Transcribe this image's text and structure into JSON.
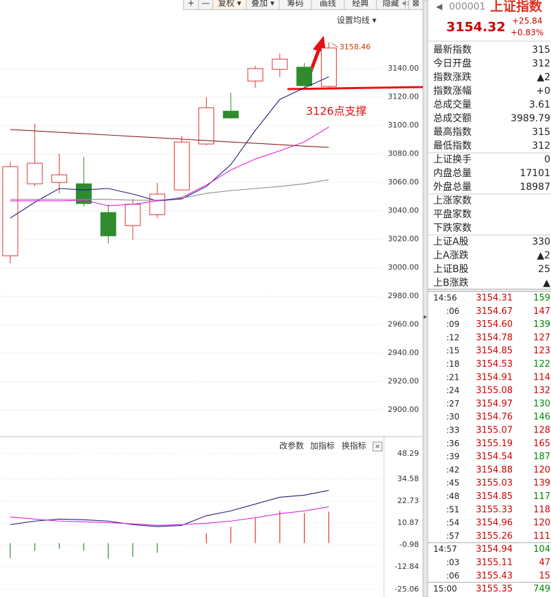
{
  "toolbar": {
    "buttons": [
      "+",
      "—",
      "复权 ▾",
      "叠加 ▾",
      "筹码",
      "画线",
      "经典",
      "隐藏",
      "«»",
      "⊠"
    ],
    "ma_settings": "设置均线 ▾"
  },
  "chart_data": [
    {
      "type": "candlestick",
      "annotation": "3126点支撑",
      "up_color": "#e03030",
      "down_color": "#2e8b2e",
      "open": [
        3008.4,
        3059.0,
        3060.0,
        3059.0,
        3038.8,
        3029.6,
        3037.3,
        3054.7,
        3087.0,
        3110.1,
        3131.3,
        3139.5,
        3141.0,
        3127.5
      ],
      "close": [
        3071.1,
        3073.5,
        3065.3,
        3045.1,
        3022.4,
        3044.6,
        3051.8,
        3088.4,
        3112.5,
        3105.3,
        3140.0,
        3146.7,
        3128.0,
        3154.5
      ],
      "high": [
        3074.5,
        3101.4,
        3080.2,
        3077.8,
        3044.6,
        3048.4,
        3059.5,
        3092.8,
        3119.8,
        3123.1,
        3141.9,
        3150.6,
        3143.9,
        3158.46
      ],
      "low": [
        3003.1,
        3057.1,
        3052.3,
        3043.1,
        3017.1,
        3019.5,
        3034.9,
        3054.7,
        3086.0,
        3104.8,
        3126.5,
        3134.2,
        3127.0,
        3127.0
      ],
      "series": [
        {
          "color": "#1c1c7a",
          "values": [
            3034.9,
            3046.0,
            3055.7,
            3054.7,
            3055.7,
            3051.8,
            3047.0,
            3048.4,
            3057.1,
            3072.5,
            3096.6,
            3118.3,
            3126.5,
            3134.2
          ]
        },
        {
          "color": "#e020e0",
          "values": [
            3047.0,
            3047.0,
            3047.0,
            3047.5,
            3043.6,
            3044.6,
            3047.0,
            3049.4,
            3058.1,
            3068.7,
            3076.4,
            3082.2,
            3088.4,
            3099.0
          ]
        },
        {
          "color": "#8b2020",
          "values": [
            3097.2,
            3096.2,
            3095.2,
            3094.3,
            3093.3,
            3092.3,
            3091.4,
            3090.4,
            3089.4,
            3088.4,
            3087.5,
            3086.5,
            3085.5,
            3084.6
          ]
        },
        {
          "color": "#8c8c8c",
          "values": [
            3048.0,
            3048.0,
            3048.0,
            3048.0,
            3048.0,
            3047.5,
            3047.5,
            3048.9,
            3052.3,
            3054.2,
            3055.7,
            3057.1,
            3059.0,
            3061.9
          ]
        }
      ],
      "ylim": [
        2882.2,
        3178.6
      ],
      "yticks": [
        {
          "value": 3140,
          "label": "3140.00"
        },
        {
          "value": 3120,
          "label": "3120.00"
        },
        {
          "value": 3100,
          "label": "3100.00"
        },
        {
          "value": 3080,
          "label": "3080.00"
        },
        {
          "value": 3060,
          "label": "3060.00"
        },
        {
          "value": 3040,
          "label": "3040.00"
        },
        {
          "value": 3020,
          "label": "3020.00"
        },
        {
          "value": 3000,
          "label": "3000.00"
        },
        {
          "value": 2980,
          "label": "2980.00"
        },
        {
          "value": 2960,
          "label": "2960.00"
        },
        {
          "value": 2940,
          "label": "2940.00"
        },
        {
          "value": 2920,
          "label": "2920.00"
        },
        {
          "value": 2900,
          "label": "2900.00"
        }
      ],
      "grid": true
    },
    {
      "type": "bar",
      "buttons": [
        "改参数",
        "加指标",
        "换指标"
      ],
      "up_color": "#e03030",
      "down_color": "#2e8b2e",
      "values": [
        -8.1,
        -4.1,
        -3.0,
        -4.1,
        -8.5,
        -7.4,
        -5.2,
        null,
        5.2,
        8.9,
        13.7,
        17.4,
        16.3,
        17.0
      ],
      "series": [
        {
          "color": "#1c1c7a",
          "values": [
            10.0,
            11.9,
            13.0,
            12.6,
            11.9,
            10.0,
            8.9,
            9.6,
            14.8,
            17.4,
            21.1,
            24.8,
            25.9,
            28.5
          ]
        },
        {
          "color": "#e020e0",
          "values": [
            14.1,
            13.0,
            11.9,
            11.5,
            11.1,
            10.4,
            9.6,
            10.0,
            10.7,
            11.9,
            13.7,
            15.9,
            17.4,
            19.6
          ]
        }
      ],
      "ylim": [
        -25.06,
        54.6
      ],
      "yticks": [
        48.29,
        34.58,
        22.73,
        10.87,
        -0.98,
        -12.84,
        -25.06
      ]
    }
  ],
  "panel": {
    "code": "000001",
    "name": "上证指数",
    "price": "3154.32",
    "change": "+25.84",
    "change_pct": "+0.83%",
    "rows": [
      {
        "label": "最新指数",
        "value": "315",
        "color": "#d00000"
      },
      {
        "label": "今日开盘",
        "value": "312",
        "color": "#008800"
      },
      {
        "label": "指数涨跌",
        "value": "▲2",
        "color": "#d00000"
      },
      {
        "label": "指数涨幅",
        "value": "+0",
        "color": "#d00000"
      },
      {
        "label": "总成交量",
        "value": "3.61",
        "color": "#222222"
      },
      {
        "label": "总成交额",
        "value": "3989.79",
        "color": "#1060b0"
      },
      {
        "label": "最高指数",
        "value": "315",
        "color": "#d00000"
      },
      {
        "label": "最低指数",
        "value": "312",
        "color": "#008800"
      },
      {
        "label": "上证换手",
        "value": "0",
        "color": "#222222"
      },
      {
        "label": "内盘总量",
        "value": "17101",
        "color": "#008800"
      },
      {
        "label": "外盘总量",
        "value": "18987",
        "color": "#d00000"
      },
      {
        "label": "上涨家数"
      },
      {
        "label": "平盘家数"
      },
      {
        "label": "下跌家数"
      },
      {
        "label": "上证A股",
        "value": "330",
        "color": "#d00000"
      },
      {
        "label": "上A涨跌",
        "value": "▲2",
        "color": "#d00000"
      },
      {
        "label": "上证B股",
        "value": "25",
        "color": "#d00000"
      },
      {
        "label": "上B涨跌",
        "value": "▲",
        "color": "#d00000"
      }
    ],
    "ticks": [
      {
        "time": "14:56",
        "price": "3154.31",
        "volume": "159",
        "color": "#008800"
      },
      {
        "time": ":06",
        "price": "3154.67",
        "volume": "147",
        "color": "#d00000"
      },
      {
        "time": ":09",
        "price": "3154.60",
        "volume": "139",
        "color": "#008800"
      },
      {
        "time": ":12",
        "price": "3154.78",
        "volume": "127",
        "color": "#d00000"
      },
      {
        "time": ":15",
        "price": "3154.85",
        "volume": "123",
        "color": "#d00000"
      },
      {
        "time": ":18",
        "price": "3154.53",
        "volume": "122",
        "color": "#008800"
      },
      {
        "time": ":21",
        "price": "3154.91",
        "volume": "114",
        "color": "#d00000"
      },
      {
        "time": ":24",
        "price": "3155.08",
        "volume": "132",
        "color": "#d00000"
      },
      {
        "time": ":27",
        "price": "3154.97",
        "volume": "130",
        "color": "#008800"
      },
      {
        "time": ":30",
        "price": "3154.76",
        "volume": "146",
        "color": "#008800"
      },
      {
        "time": ":33",
        "price": "3155.07",
        "volume": "128",
        "color": "#d00000"
      },
      {
        "time": ":36",
        "price": "3155.19",
        "volume": "165",
        "color": "#d00000"
      },
      {
        "time": ":39",
        "price": "3154.54",
        "volume": "187",
        "color": "#008800"
      },
      {
        "time": ":42",
        "price": "3154.88",
        "volume": "120",
        "color": "#d00000"
      },
      {
        "time": ":45",
        "price": "3155.03",
        "volume": "139",
        "color": "#d00000"
      },
      {
        "time": ":48",
        "price": "3154.85",
        "volume": "117",
        "color": "#008800"
      },
      {
        "time": ":51",
        "price": "3155.33",
        "volume": "118",
        "color": "#d00000"
      },
      {
        "time": ":54",
        "price": "3154.96",
        "volume": "120",
        "color": "#d00000"
      },
      {
        "time": ":57",
        "price": "3155.26",
        "volume": "111",
        "color": "#d00000"
      },
      {
        "time": "14:57",
        "price": "3154.94",
        "volume": "104",
        "color": "#008800"
      },
      {
        "time": ":03",
        "price": "3155.11",
        "volume": "47",
        "color": "#d00000"
      },
      {
        "time": ":06",
        "price": "3155.43",
        "volume": "15",
        "color": "#d00000"
      },
      {
        "time": "15:00",
        "price": "3155.35",
        "volume": "749",
        "color": "#008800"
      }
    ]
  }
}
